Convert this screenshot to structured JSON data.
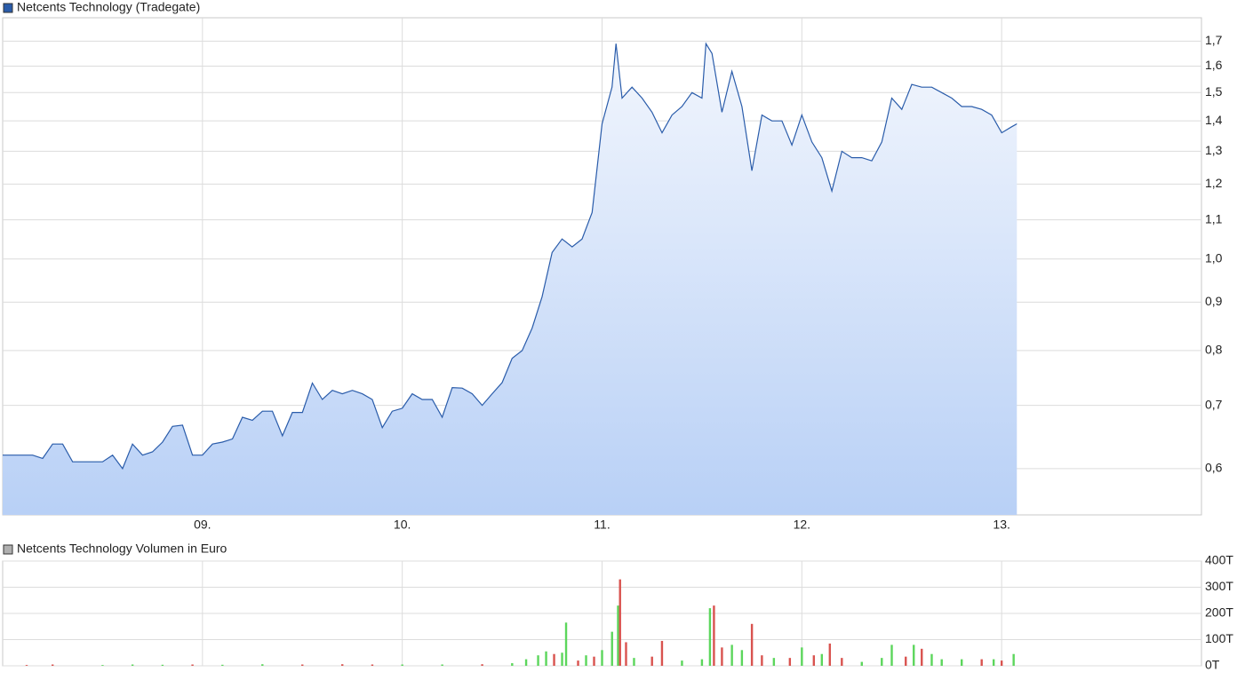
{
  "chart_data": [
    {
      "type": "line",
      "title": "Netcents Technology (Tradegate)",
      "color": "#2a5caa",
      "area": true,
      "log_scale": true,
      "grid": true,
      "x": [
        8.0,
        8.05,
        8.1,
        8.15,
        8.2,
        8.25,
        8.3,
        8.35,
        8.4,
        8.45,
        8.5,
        8.55,
        8.6,
        8.65,
        8.7,
        8.75,
        8.8,
        8.85,
        8.9,
        8.95,
        9.0,
        9.05,
        9.1,
        9.15,
        9.2,
        9.25,
        9.3,
        9.35,
        9.4,
        9.45,
        9.5,
        9.55,
        9.6,
        9.65,
        9.7,
        9.75,
        9.8,
        9.85,
        9.9,
        9.95,
        10.0,
        10.05,
        10.1,
        10.15,
        10.2,
        10.25,
        10.3,
        10.35,
        10.4,
        10.45,
        10.5,
        10.55,
        10.6,
        10.65,
        10.7,
        10.75,
        10.8,
        10.85,
        10.9,
        10.95,
        11.0,
        11.05,
        11.07,
        11.1,
        11.15,
        11.2,
        11.25,
        11.3,
        11.35,
        11.4,
        11.45,
        11.5,
        11.52,
        11.55,
        11.6,
        11.65,
        11.7,
        11.75,
        11.8,
        11.85,
        11.9,
        11.95,
        12.0,
        12.05,
        12.1,
        12.15,
        12.2,
        12.25,
        12.3,
        12.35,
        12.4,
        12.45,
        12.5,
        12.55,
        12.6,
        12.65,
        12.7,
        12.75,
        12.8,
        12.85,
        12.9,
        12.95,
        13.0,
        13.05,
        13.076
      ],
      "values": [
        0.62,
        0.62,
        0.62,
        0.62,
        0.615,
        0.637,
        0.637,
        0.61,
        0.61,
        0.61,
        0.61,
        0.62,
        0.6,
        0.637,
        0.62,
        0.625,
        0.64,
        0.665,
        0.667,
        0.62,
        0.62,
        0.637,
        0.64,
        0.645,
        0.68,
        0.675,
        0.69,
        0.69,
        0.65,
        0.688,
        0.688,
        0.739,
        0.71,
        0.726,
        0.72,
        0.726,
        0.72,
        0.71,
        0.663,
        0.69,
        0.695,
        0.72,
        0.71,
        0.71,
        0.68,
        0.731,
        0.73,
        0.72,
        0.7,
        0.72,
        0.74,
        0.785,
        0.8,
        0.845,
        0.912,
        1.016,
        1.05,
        1.03,
        1.05,
        1.12,
        1.39,
        1.52,
        1.69,
        1.48,
        1.52,
        1.48,
        1.43,
        1.36,
        1.42,
        1.45,
        1.5,
        1.48,
        1.69,
        1.65,
        1.43,
        1.58,
        1.45,
        1.24,
        1.42,
        1.4,
        1.4,
        1.32,
        1.42,
        1.33,
        1.28,
        1.18,
        1.3,
        1.28,
        1.28,
        1.27,
        1.33,
        1.48,
        1.44,
        1.53,
        1.52,
        1.52,
        1.5,
        1.48,
        1.45,
        1.45,
        1.44,
        1.42,
        1.36,
        1.38,
        1.39
      ],
      "xlim": [
        8,
        14
      ],
      "xticks": [
        {
          "value": 9,
          "label": "09."
        },
        {
          "value": 10,
          "label": "10."
        },
        {
          "value": 11,
          "label": "11."
        },
        {
          "value": 12,
          "label": "12."
        },
        {
          "value": 13,
          "label": "13."
        }
      ],
      "ylim": [
        0.536,
        1.8
      ],
      "yticks": [
        {
          "value": 0.6,
          "label": "0,6"
        },
        {
          "value": 0.7,
          "label": "0,7"
        },
        {
          "value": 0.8,
          "label": "0,8"
        },
        {
          "value": 0.9,
          "label": "0,9"
        },
        {
          "value": 1.0,
          "label": "1,0"
        },
        {
          "value": 1.1,
          "label": "1,1"
        },
        {
          "value": 1.2,
          "label": "1,2"
        },
        {
          "value": 1.3,
          "label": "1,3"
        },
        {
          "value": 1.4,
          "label": "1,4"
        },
        {
          "value": 1.5,
          "label": "1,5"
        },
        {
          "value": 1.6,
          "label": "1,6"
        },
        {
          "value": 1.7,
          "label": "1,7"
        }
      ]
    },
    {
      "type": "bar",
      "title": "Netcents Technology Volumen in Euro",
      "color": "#b0b0b0",
      "grid": true,
      "x": [
        8.12,
        8.25,
        8.5,
        8.65,
        8.8,
        8.95,
        9.1,
        9.3,
        9.5,
        9.7,
        9.85,
        10.0,
        10.2,
        10.4,
        10.55,
        10.62,
        10.68,
        10.72,
        10.76,
        10.8,
        10.82,
        10.88,
        10.92,
        10.96,
        11.0,
        11.05,
        11.08,
        11.09,
        11.12,
        11.16,
        11.25,
        11.3,
        11.4,
        11.5,
        11.54,
        11.56,
        11.6,
        11.65,
        11.7,
        11.75,
        11.8,
        11.86,
        11.94,
        12.0,
        12.06,
        12.1,
        12.14,
        12.2,
        12.3,
        12.4,
        12.45,
        12.52,
        12.56,
        12.6,
        12.65,
        12.7,
        12.8,
        12.9,
        12.96,
        13.0,
        13.06
      ],
      "values": [
        3,
        5,
        3,
        5,
        4,
        5,
        4,
        6,
        5,
        6,
        5,
        5,
        5,
        6,
        10,
        25,
        40,
        55,
        45,
        50,
        165,
        20,
        40,
        35,
        60,
        130,
        230,
        330,
        90,
        30,
        35,
        95,
        20,
        25,
        220,
        230,
        70,
        80,
        60,
        160,
        40,
        30,
        30,
        70,
        40,
        45,
        85,
        30,
        15,
        30,
        80,
        35,
        80,
        65,
        45,
        25,
        25,
        25,
        25,
        20,
        45
      ],
      "bar_colors": [
        "#d9534f",
        "#d9534f",
        "#5cd65c",
        "#5cd65c",
        "#5cd65c",
        "#d9534f",
        "#5cd65c",
        "#5cd65c",
        "#d9534f",
        "#d9534f",
        "#d9534f",
        "#5cd65c",
        "#5cd65c",
        "#d9534f",
        "#5cd65c",
        "#5cd65c",
        "#5cd65c",
        "#5cd65c",
        "#d9534f",
        "#5cd65c",
        "#5cd65c",
        "#d9534f",
        "#5cd65c",
        "#d9534f",
        "#5cd65c",
        "#5cd65c",
        "#5cd65c",
        "#d9534f",
        "#d9534f",
        "#5cd65c",
        "#d9534f",
        "#d9534f",
        "#5cd65c",
        "#5cd65c",
        "#5cd65c",
        "#d9534f",
        "#d9534f",
        "#5cd65c",
        "#5cd65c",
        "#d9534f",
        "#d9534f",
        "#5cd65c",
        "#d9534f",
        "#5cd65c",
        "#d9534f",
        "#5cd65c",
        "#d9534f",
        "#d9534f",
        "#5cd65c",
        "#5cd65c",
        "#5cd65c",
        "#d9534f",
        "#5cd65c",
        "#d9534f",
        "#5cd65c",
        "#5cd65c",
        "#5cd65c",
        "#d9534f",
        "#5cd65c",
        "#d9534f",
        "#5cd65c"
      ],
      "xlim": [
        8,
        14
      ],
      "xticks": [
        9,
        10,
        11,
        12,
        13
      ],
      "ylim": [
        0,
        400
      ],
      "yticks": [
        {
          "value": 0,
          "label": "0T"
        },
        {
          "value": 100,
          "label": "100T"
        },
        {
          "value": 200,
          "label": "200T"
        },
        {
          "value": 300,
          "label": "300T"
        },
        {
          "value": 400,
          "label": "400T"
        }
      ]
    }
  ]
}
